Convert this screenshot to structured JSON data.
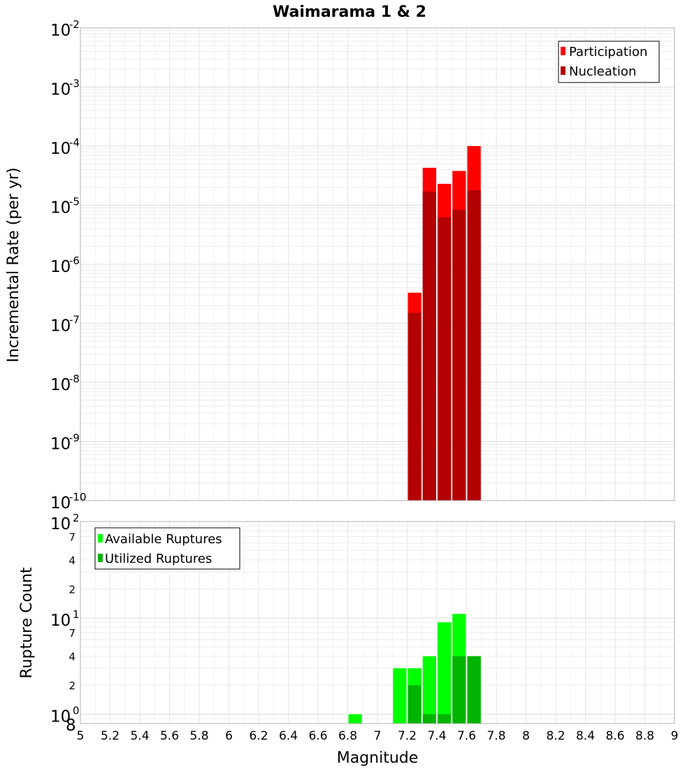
{
  "chart_data": [
    {
      "type": "bar",
      "title": "Waimarama 1 & 2",
      "xlabel": "",
      "ylabel": "Incremental Rate (per yr)",
      "yscale": "log",
      "ylim": [
        1e-10,
        0.01
      ],
      "xlim": [
        5,
        9
      ],
      "bar_width": 0.1,
      "x": [
        7.25,
        7.35,
        7.45,
        7.55,
        7.65
      ],
      "series": [
        {
          "name": "Participation",
          "color": "#ff0000",
          "values": [
            3.3e-07,
            4.3e-05,
            2.3e-05,
            3.8e-05,
            0.0001
          ]
        },
        {
          "name": "Nucleation",
          "color": "#b30000",
          "values": [
            1.5e-07,
            1.7e-05,
            6.2e-06,
            8.3e-06,
            1.8e-05
          ]
        }
      ],
      "legend_position": "top-right",
      "grid": true
    },
    {
      "type": "bar",
      "xlabel": "Magnitude",
      "ylabel": "Rupture Count",
      "yscale": "log",
      "ylim": [
        0.8,
        100
      ],
      "xlim": [
        5,
        9
      ],
      "bar_width": 0.1,
      "x": [
        6.85,
        7.15,
        7.25,
        7.35,
        7.45,
        7.55,
        7.65
      ],
      "series": [
        {
          "name": "Available Ruptures",
          "color": "#00ff00",
          "values": [
            1,
            3,
            3,
            4,
            9,
            11,
            4
          ]
        },
        {
          "name": "Utilized Ruptures",
          "color": "#00b300",
          "values": [
            0,
            0,
            2,
            1,
            1,
            4,
            4
          ]
        }
      ],
      "legend_position": "top-left",
      "grid": true
    }
  ],
  "axes": {
    "top_y_ticks": [
      {
        "base": "10",
        "exp": "-2"
      },
      {
        "base": "10",
        "exp": "-3"
      },
      {
        "base": "10",
        "exp": "-4"
      },
      {
        "base": "10",
        "exp": "-5"
      },
      {
        "base": "10",
        "exp": "-6"
      },
      {
        "base": "10",
        "exp": "-7"
      },
      {
        "base": "10",
        "exp": "-8"
      },
      {
        "base": "10",
        "exp": "-9"
      },
      {
        "base": "10",
        "exp": "-10"
      }
    ],
    "bottom_y_ticks": [
      "10",
      "7",
      "4",
      "2",
      "10",
      "7",
      "4",
      "2",
      "10",
      "8"
    ],
    "bottom_y_exps": [
      "2",
      "1",
      "0"
    ],
    "x_ticks": [
      "5",
      "5.2",
      "5.4",
      "5.6",
      "5.8",
      "6",
      "6.2",
      "6.4",
      "6.6",
      "6.8",
      "7",
      "7.2",
      "7.4",
      "7.6",
      "7.8",
      "8",
      "8.2",
      "8.4",
      "8.6",
      "8.8",
      "9"
    ]
  }
}
